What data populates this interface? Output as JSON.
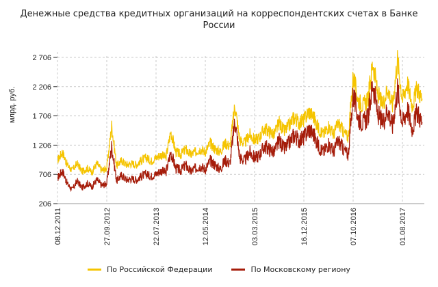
{
  "chart_data": {
    "type": "line",
    "title_line1": "Денежные средства кредитных организаций на корреспондентских счетах в Банке",
    "title_line2": "России",
    "xlabel": "",
    "ylabel": "млрд. руб.",
    "ylim": [
      206,
      2706
    ],
    "yticks": [
      206,
      706,
      1206,
      1706,
      2206,
      2706
    ],
    "ytick_labels": [
      "206",
      "706",
      "1 206",
      "1 706",
      "2 206",
      "2 706"
    ],
    "xtick_labels": [
      "08.12.2011",
      "27.09.2012",
      "22.07.2013",
      "12.05.2014",
      "03.03.2015",
      "16.12.2015",
      "07.10.2016",
      "01.08.2017"
    ],
    "grid": true,
    "legend_position": "bottom",
    "x_range_periods": [
      0,
      7.45
    ],
    "series": [
      {
        "name": "По Российской Федерации",
        "color": "#F5C400",
        "x": [
          0,
          0.1,
          0.2,
          0.3,
          0.4,
          0.5,
          0.6,
          0.7,
          0.8,
          0.9,
          1.0,
          1.1,
          1.2,
          1.3,
          1.4,
          1.5,
          1.6,
          1.7,
          1.8,
          1.9,
          2.0,
          2.1,
          2.2,
          2.3,
          2.4,
          2.5,
          2.6,
          2.7,
          2.8,
          2.9,
          3.0,
          3.1,
          3.2,
          3.3,
          3.4,
          3.5,
          3.6,
          3.7,
          3.8,
          3.9,
          4.0,
          4.1,
          4.2,
          4.3,
          4.4,
          4.5,
          4.6,
          4.7,
          4.8,
          4.9,
          5.0,
          5.1,
          5.2,
          5.3,
          5.4,
          5.5,
          5.6,
          5.7,
          5.8,
          5.9,
          6.0,
          6.1,
          6.2,
          6.3,
          6.4,
          6.5,
          6.6,
          6.7,
          6.8,
          6.9,
          7.0,
          7.1,
          7.2,
          7.3,
          7.4
        ],
        "values": [
          950,
          1100,
          870,
          780,
          900,
          760,
          820,
          750,
          900,
          780,
          820,
          1550,
          860,
          950,
          880,
          900,
          880,
          950,
          1000,
          940,
          1000,
          1050,
          1000,
          1450,
          1100,
          1050,
          1150,
          1050,
          1100,
          1150,
          1100,
          1250,
          1150,
          1100,
          1250,
          1200,
          1900,
          1300,
          1250,
          1400,
          1300,
          1350,
          1500,
          1450,
          1400,
          1600,
          1450,
          1550,
          1700,
          1600,
          1650,
          1800,
          1700,
          1500,
          1400,
          1550,
          1400,
          1600,
          1450,
          1350,
          2400,
          2000,
          1900,
          2000,
          2650,
          2100,
          1900,
          2200,
          1900,
          2700,
          2000,
          2300,
          1900,
          2200,
          2000
        ]
      },
      {
        "name": "По Московскому региону",
        "color": "#A51C0A",
        "x": [
          0,
          0.1,
          0.2,
          0.3,
          0.4,
          0.5,
          0.6,
          0.7,
          0.8,
          0.9,
          1.0,
          1.1,
          1.2,
          1.3,
          1.4,
          1.5,
          1.6,
          1.7,
          1.8,
          1.9,
          2.0,
          2.1,
          2.2,
          2.3,
          2.4,
          2.5,
          2.6,
          2.7,
          2.8,
          2.9,
          3.0,
          3.1,
          3.2,
          3.3,
          3.4,
          3.5,
          3.6,
          3.7,
          3.8,
          3.9,
          4.0,
          4.1,
          4.2,
          4.3,
          4.4,
          4.5,
          4.6,
          4.7,
          4.8,
          4.9,
          5.0,
          5.1,
          5.2,
          5.3,
          5.4,
          5.5,
          5.6,
          5.7,
          5.8,
          5.9,
          6.0,
          6.1,
          6.2,
          6.3,
          6.4,
          6.5,
          6.6,
          6.7,
          6.8,
          6.9,
          7.0,
          7.1,
          7.2,
          7.3,
          7.4
        ],
        "values": [
          650,
          780,
          550,
          450,
          600,
          480,
          560,
          500,
          620,
          520,
          560,
          1200,
          600,
          700,
          620,
          640,
          620,
          680,
          720,
          680,
          720,
          780,
          740,
          1100,
          820,
          780,
          880,
          760,
          820,
          860,
          800,
          950,
          880,
          800,
          960,
          900,
          1650,
          1000,
          950,
          1100,
          1000,
          1050,
          1200,
          1150,
          1100,
          1300,
          1150,
          1250,
          1400,
          1300,
          1350,
          1500,
          1400,
          1200,
          1100,
          1250,
          1100,
          1300,
          1150,
          1050,
          2100,
          1700,
          1600,
          1700,
          2300,
          1750,
          1600,
          1850,
          1550,
          2200,
          1600,
          1850,
          1500,
          1800,
          1600
        ]
      }
    ]
  }
}
